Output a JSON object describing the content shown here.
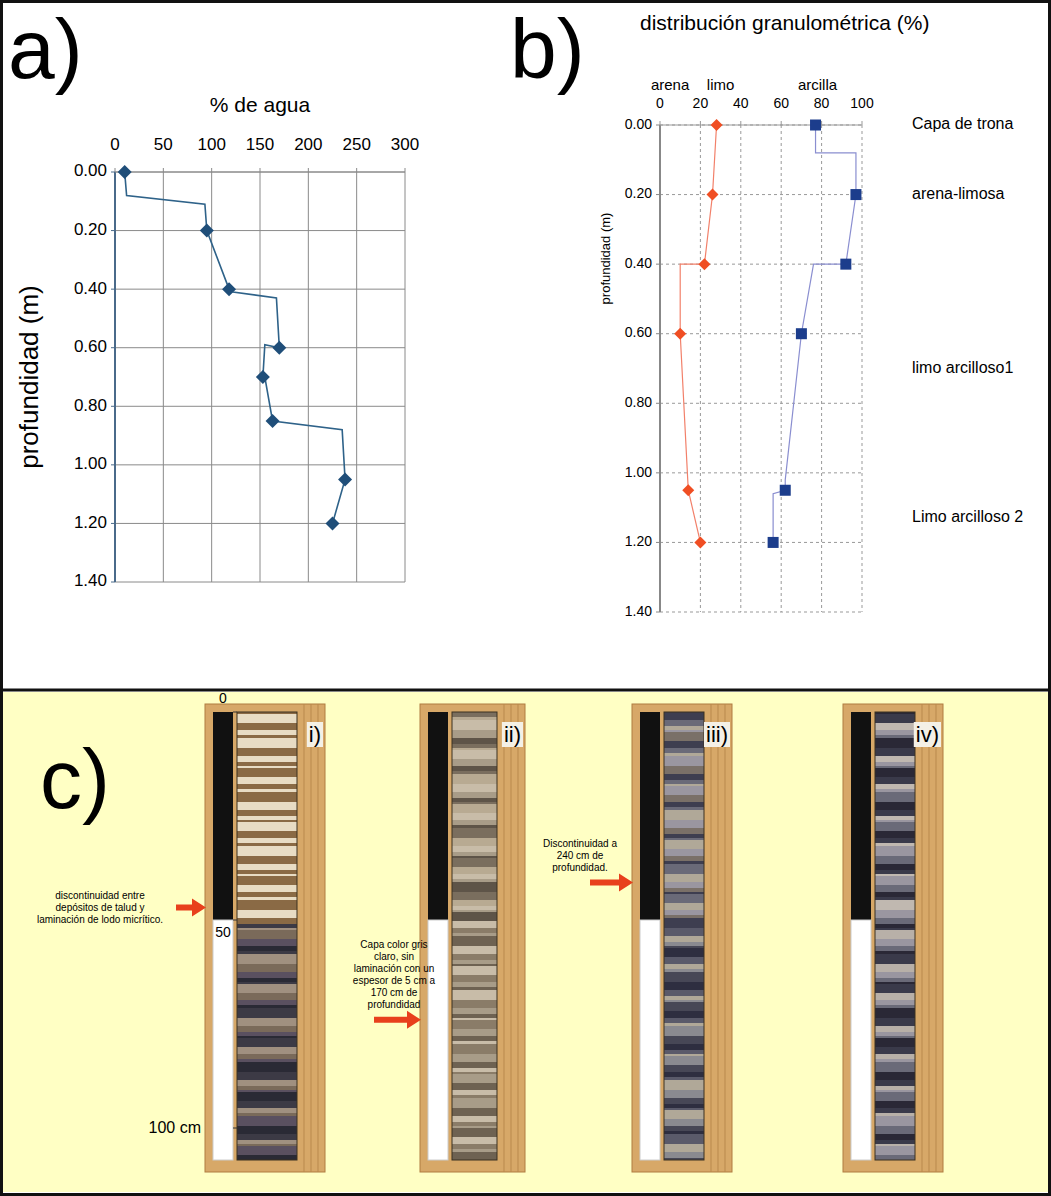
{
  "chart_data": [
    {
      "type": "line",
      "panel": "a)",
      "x_label": "% de agua",
      "y_label": "profundidad (m)",
      "xlim": [
        0,
        300
      ],
      "xticks": [
        0,
        50,
        100,
        150,
        200,
        250,
        300
      ],
      "ylim": [
        1.4,
        0
      ],
      "yticks": [
        {
          "value": 0,
          "label": "0.00"
        },
        {
          "value": 0.2,
          "label": "0.20"
        },
        {
          "value": 0.4,
          "label": "0.40"
        },
        {
          "value": 0.6,
          "label": "0.60"
        },
        {
          "value": 0.8,
          "label": "0.80"
        },
        {
          "value": 1.0,
          "label": "1.00"
        },
        {
          "value": 1.2,
          "label": "1.20"
        },
        {
          "value": 1.4,
          "label": "1.40"
        }
      ],
      "grid": true,
      "series": [
        {
          "color": "#2e6289",
          "marker": "none",
          "line_style": "solid",
          "x": [
            10,
            12,
            93,
            95,
            118,
            122,
            167,
            170,
            155,
            153,
            155,
            163,
            235,
            238,
            225
          ],
          "values": [
            0,
            0.08,
            0.11,
            0.2,
            0.4,
            0.41,
            0.43,
            0.6,
            0.59,
            0.7,
            0.7,
            0.85,
            0.88,
            1.05,
            1.2
          ]
        },
        {
          "color": "#1f4e79",
          "marker": "diamond",
          "line_style": "none",
          "x": [
            10,
            95,
            118,
            170,
            153,
            163,
            238,
            225
          ],
          "values": [
            0,
            0.2,
            0.4,
            0.6,
            0.7,
            0.85,
            1.05,
            1.2
          ]
        }
      ]
    },
    {
      "type": "line",
      "panel": "b)",
      "title": "distribución granulométrica (%)",
      "y_label": "profundidad (m)",
      "category_labels": [
        {
          "text": "arena",
          "x": 5
        },
        {
          "text": "limo",
          "x": 30
        },
        {
          "text": "arcilla",
          "x": 78
        }
      ],
      "xlim": [
        0,
        100
      ],
      "xticks": [
        0,
        20,
        40,
        60,
        80,
        100
      ],
      "ylim": [
        1.4,
        0
      ],
      "yticks": [
        {
          "value": 0,
          "label": "0.00"
        },
        {
          "value": 0.2,
          "label": "0.20"
        },
        {
          "value": 0.4,
          "label": "0.40"
        },
        {
          "value": 0.6,
          "label": "0.60"
        },
        {
          "value": 0.8,
          "label": "0.80"
        },
        {
          "value": 1.0,
          "label": "1.00"
        },
        {
          "value": 1.2,
          "label": "1.20"
        },
        {
          "value": 1.4,
          "label": "1.40"
        }
      ],
      "grid": true,
      "annotations": [
        {
          "text": "Capa de trona",
          "y": 0
        },
        {
          "text": "arena-limosa",
          "y": 0.2
        },
        {
          "text": "limo arcilloso1",
          "y": 0.7
        },
        {
          "text": "Limo arcilloso 2",
          "y": 1.13
        }
      ],
      "series": [
        {
          "color": "#f2806a",
          "marker": "none",
          "line_style": "solid",
          "x": [
            28,
            26,
            22,
            10,
            10,
            14,
            20
          ],
          "values": [
            0,
            0.2,
            0.4,
            0.4,
            0.6,
            1.05,
            1.2
          ]
        },
        {
          "color": "#f04e23",
          "marker": "diamond",
          "line_style": "none",
          "x": [
            28,
            26,
            22,
            10,
            14,
            20
          ],
          "values": [
            0,
            0.2,
            0.4,
            0.6,
            1.05,
            1.2
          ]
        },
        {
          "color": "#8a8ed0",
          "marker": "none",
          "line_style": "solid",
          "x": [
            77,
            77,
            97,
            97,
            92,
            76,
            70,
            62,
            62,
            56,
            56
          ],
          "values": [
            0,
            0.08,
            0.08,
            0.2,
            0.4,
            0.4,
            0.6,
            1.02,
            1.05,
            1.06,
            1.2
          ]
        },
        {
          "color": "#1c3d8c",
          "marker": "square",
          "line_style": "none",
          "x": [
            77,
            97,
            92,
            70,
            62,
            56
          ],
          "values": [
            0,
            0.2,
            0.4,
            0.6,
            1.05,
            1.2
          ]
        }
      ]
    }
  ],
  "photo_panel": {
    "panel": "c)",
    "cores": [
      "i)",
      "ii)",
      "iii)",
      "iv)"
    ],
    "scale": [
      {
        "value": 0,
        "label": "0"
      },
      {
        "value": 50,
        "label": "50"
      },
      {
        "value": 100,
        "label": "100 cm"
      }
    ],
    "annotations": [
      "discontinuidad entre depósitos de talud y laminación de lodo micrítico.",
      "Capa color gris claro, sin laminación con un espesor de 5 cm a 170 cm de profundidad",
      "Discontinuidad a 240 cm de profundidad."
    ]
  }
}
